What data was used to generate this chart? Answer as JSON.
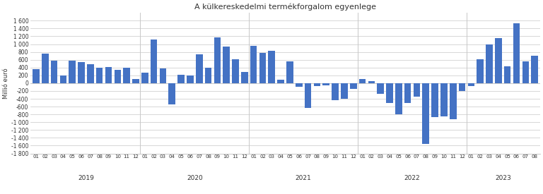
{
  "title": "A külkereskedelmi termékforgalom egyenlege",
  "ylabel": "Millió euró",
  "bar_color": "#4472C4",
  "ylim": [
    -1800,
    1800
  ],
  "yticks": [
    -1800,
    -1600,
    -1400,
    -1200,
    -1000,
    -800,
    -600,
    -400,
    -200,
    0,
    200,
    400,
    600,
    800,
    1000,
    1200,
    1400,
    1600
  ],
  "values": [
    350,
    750,
    570,
    200,
    570,
    540,
    490,
    390,
    420,
    340,
    390,
    100,
    270,
    1120,
    370,
    -540,
    220,
    200,
    740,
    390,
    1180,
    940,
    610,
    290,
    960,
    770,
    820,
    80,
    560,
    -100,
    -640,
    -70,
    -50,
    -430,
    -400,
    -150,
    100,
    50,
    -270,
    -500,
    -800,
    -500,
    -350,
    -1560,
    -870,
    -860,
    -920,
    -200,
    -80,
    620,
    990,
    1160,
    430,
    1540,
    560,
    700
  ],
  "month_labels": [
    "01",
    "02",
    "03",
    "04",
    "05",
    "06",
    "07",
    "08",
    "09",
    "10",
    "11",
    "12",
    "01",
    "02",
    "03",
    "04",
    "05",
    "06",
    "07",
    "08",
    "09",
    "10",
    "11",
    "12",
    "01",
    "02",
    "03",
    "04",
    "05",
    "06",
    "07",
    "08",
    "09",
    "10",
    "11",
    "12",
    "01",
    "02",
    "03",
    "04",
    "05",
    "06",
    "07",
    "08",
    "09",
    "10",
    "11",
    "12",
    "01",
    "02",
    "03",
    "04",
    "05",
    "06",
    "07",
    "08"
  ],
  "year_info": [
    [
      0,
      11,
      "2019"
    ],
    [
      12,
      23,
      "2020"
    ],
    [
      24,
      35,
      "2021"
    ],
    [
      36,
      47,
      "2022"
    ],
    [
      48,
      55,
      "2023"
    ]
  ],
  "year_dividers": [
    11.5,
    23.5,
    35.5,
    47.5
  ],
  "background_color": "#ffffff",
  "grid_color": "#c8c8c8"
}
